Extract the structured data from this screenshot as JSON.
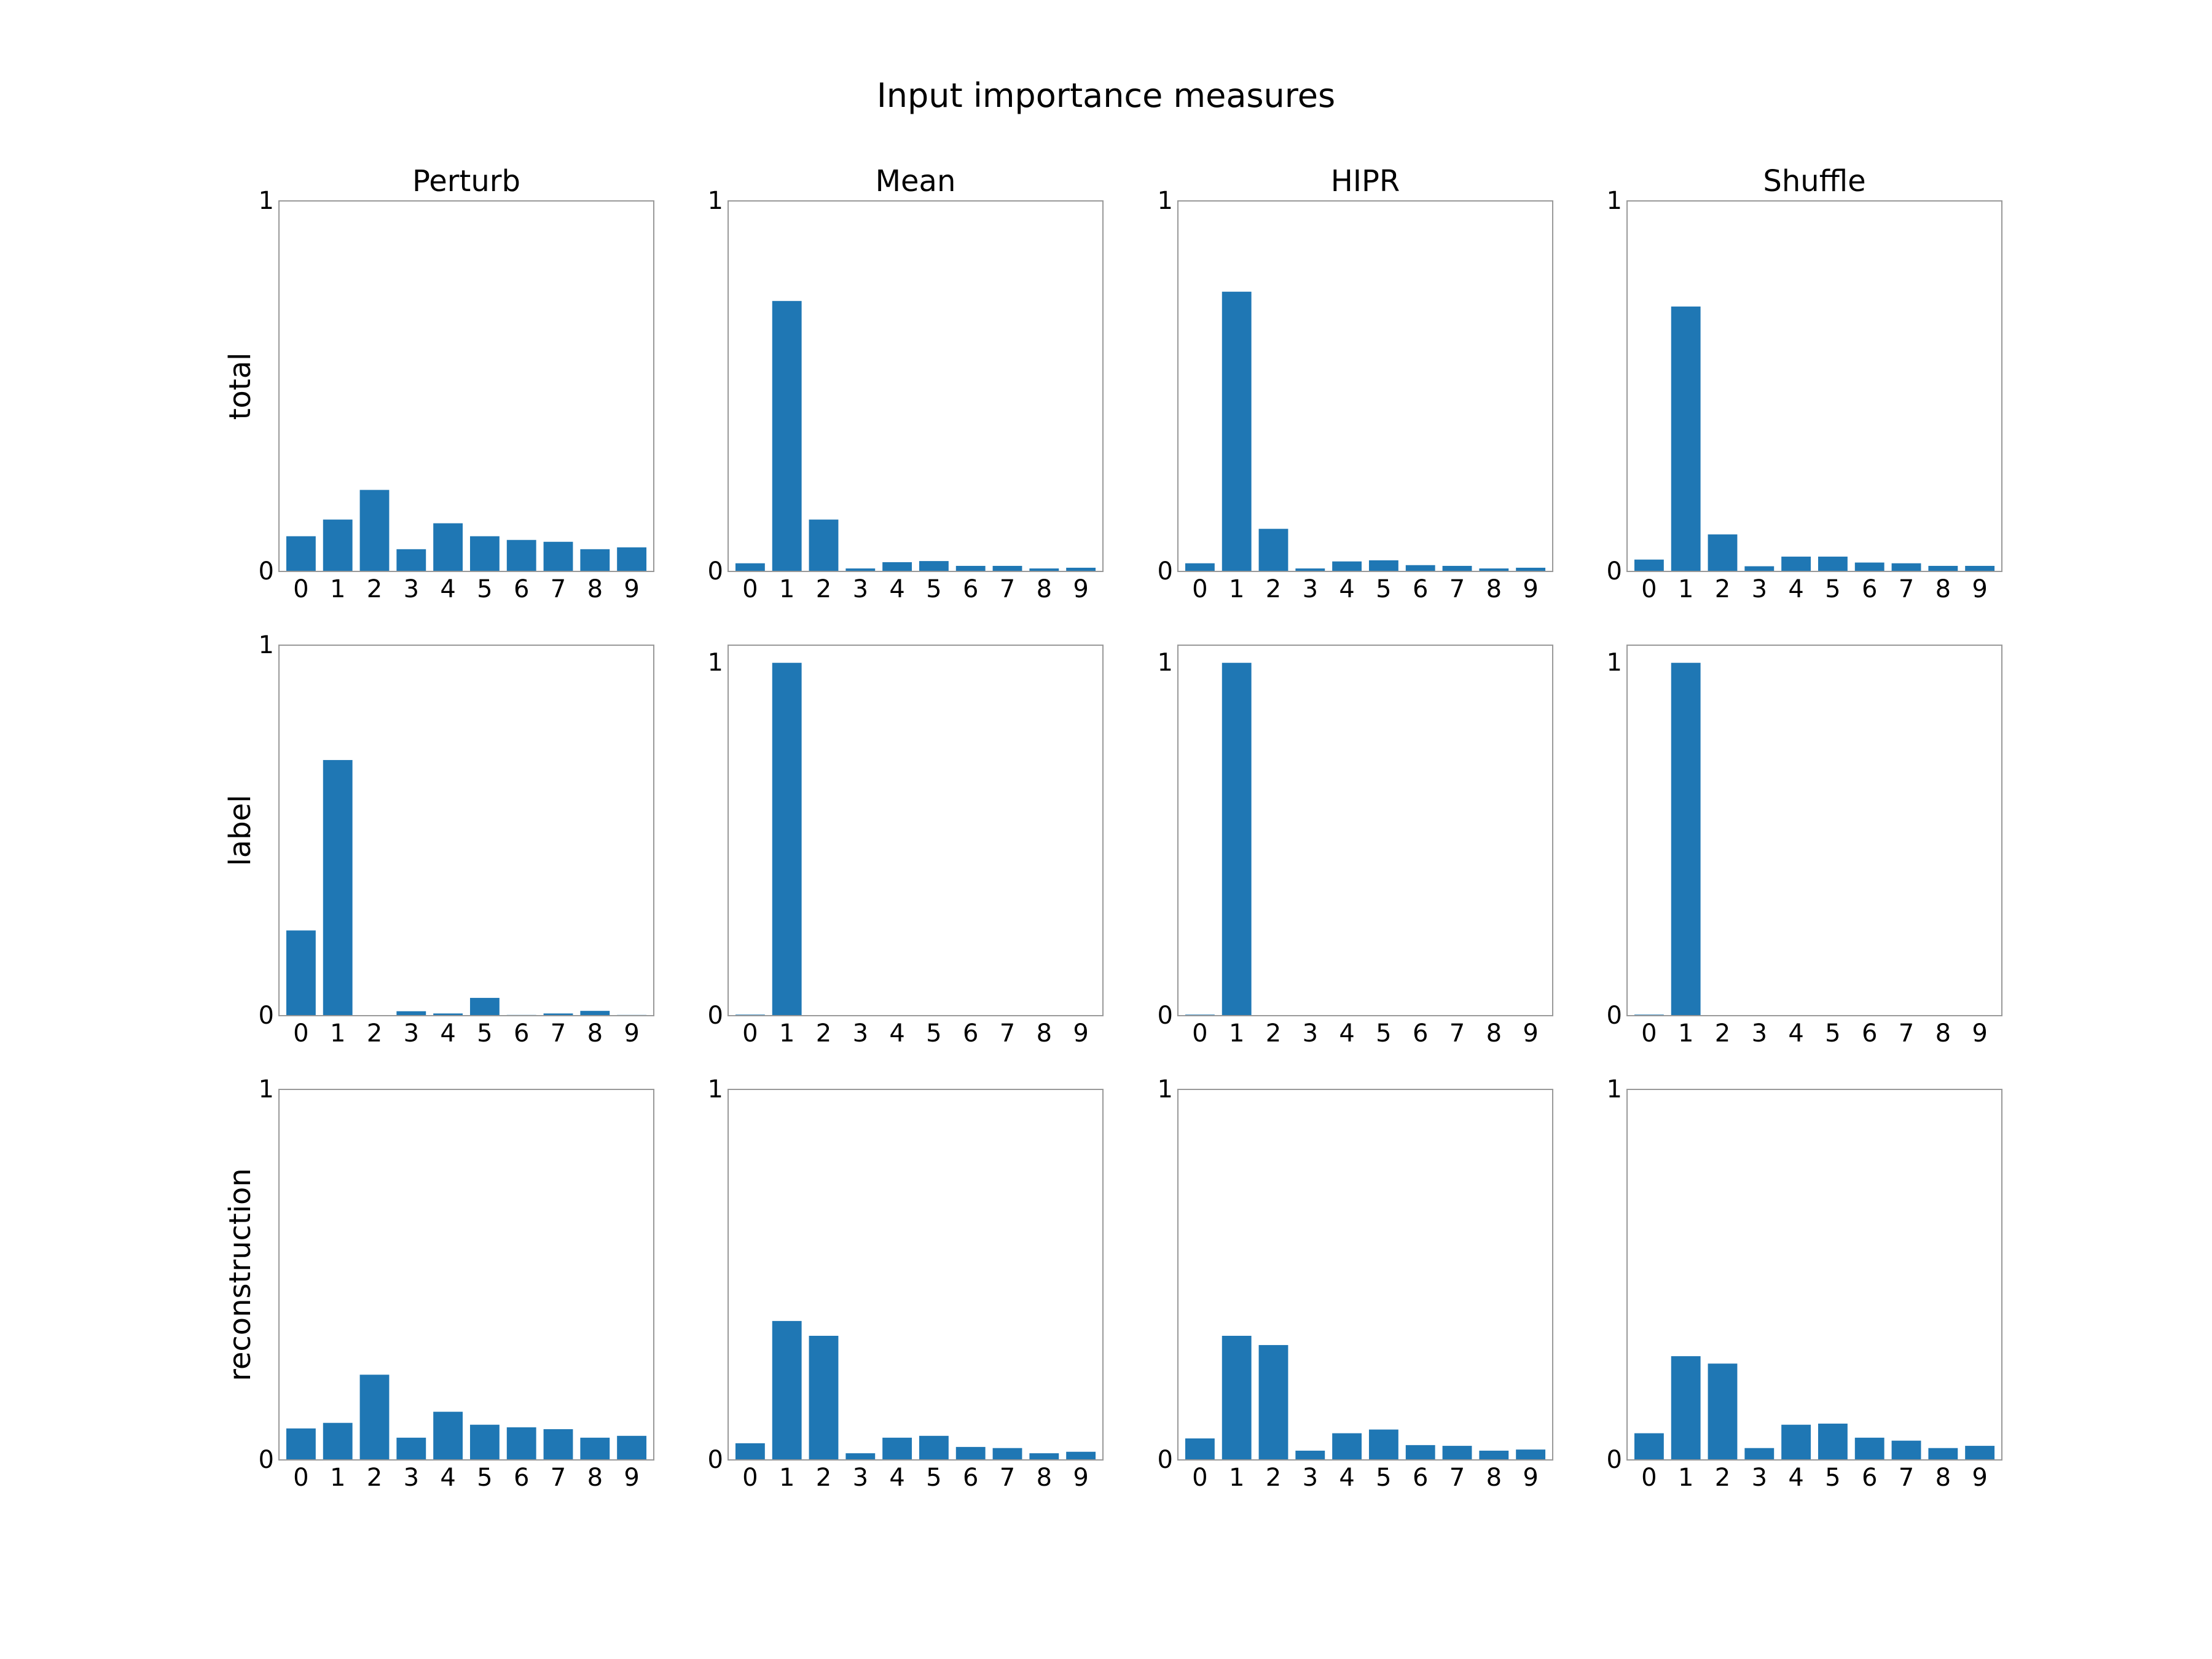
{
  "figure": {
    "title": "Input importance measures",
    "bar_color": "#1f77b4",
    "frame_color": "#999999"
  },
  "chart_data": {
    "type": "bar",
    "layout": "3x4 grid",
    "columns": [
      "Perturb",
      "Mean",
      "HIPR",
      "Shuffle"
    ],
    "rows": [
      "total",
      "label",
      "reconstruction"
    ],
    "categories": [
      "0",
      "1",
      "2",
      "3",
      "4",
      "5",
      "6",
      "7",
      "8",
      "9"
    ],
    "panels": [
      {
        "row": "total",
        "column": "Perturb",
        "ylim": [
          0,
          1
        ],
        "yticks": [
          "0",
          "1"
        ],
        "values": [
          0.095,
          0.14,
          0.22,
          0.06,
          0.13,
          0.095,
          0.085,
          0.08,
          0.06,
          0.065
        ]
      },
      {
        "row": "total",
        "column": "Mean",
        "ylim": [
          0,
          1
        ],
        "yticks": [
          "0",
          "1"
        ],
        "values": [
          0.022,
          0.73,
          0.14,
          0.008,
          0.025,
          0.028,
          0.015,
          0.015,
          0.008,
          0.01
        ]
      },
      {
        "row": "total",
        "column": "HIPR",
        "ylim": [
          0,
          1
        ],
        "yticks": [
          "0",
          "1"
        ],
        "values": [
          0.022,
          0.755,
          0.115,
          0.008,
          0.027,
          0.03,
          0.017,
          0.015,
          0.008,
          0.01
        ]
      },
      {
        "row": "total",
        "column": "Shuffle",
        "ylim": [
          0,
          1
        ],
        "yticks": [
          "0",
          "1"
        ],
        "values": [
          0.032,
          0.715,
          0.1,
          0.014,
          0.04,
          0.04,
          0.024,
          0.022,
          0.015,
          0.015
        ]
      },
      {
        "row": "label",
        "column": "Perturb",
        "ylim": [
          0,
          1
        ],
        "yticks": [
          "0",
          "1"
        ],
        "values": [
          0.23,
          0.69,
          0.0,
          0.012,
          0.006,
          0.048,
          0.002,
          0.006,
          0.013,
          0.002
        ]
      },
      {
        "row": "label",
        "column": "Mean",
        "ylim": [
          0,
          1.05
        ],
        "yticks": [
          "0",
          "1"
        ],
        "values": [
          0.003,
          1.0,
          0,
          0,
          0,
          0,
          0,
          0,
          0,
          0
        ]
      },
      {
        "row": "label",
        "column": "HIPR",
        "ylim": [
          0,
          1.05
        ],
        "yticks": [
          "0",
          "1"
        ],
        "values": [
          0.003,
          1.0,
          0,
          0,
          0,
          0,
          0,
          0,
          0,
          0
        ]
      },
      {
        "row": "label",
        "column": "Shuffle",
        "ylim": [
          0,
          1.05
        ],
        "yticks": [
          "0",
          "1"
        ],
        "values": [
          0.003,
          1.0,
          0,
          0,
          0,
          0,
          0,
          0,
          0,
          0
        ]
      },
      {
        "row": "reconstruction",
        "column": "Perturb",
        "ylim": [
          0,
          1
        ],
        "yticks": [
          "0",
          "1"
        ],
        "values": [
          0.085,
          0.1,
          0.23,
          0.06,
          0.13,
          0.095,
          0.088,
          0.083,
          0.06,
          0.065
        ]
      },
      {
        "row": "reconstruction",
        "column": "Mean",
        "ylim": [
          0,
          1
        ],
        "yticks": [
          "0",
          "1"
        ],
        "values": [
          0.045,
          0.375,
          0.335,
          0.018,
          0.06,
          0.065,
          0.035,
          0.032,
          0.018,
          0.022
        ]
      },
      {
        "row": "reconstruction",
        "column": "HIPR",
        "ylim": [
          0,
          1
        ],
        "yticks": [
          "0",
          "1"
        ],
        "values": [
          0.058,
          0.335,
          0.31,
          0.025,
          0.072,
          0.082,
          0.04,
          0.038,
          0.025,
          0.028
        ]
      },
      {
        "row": "reconstruction",
        "column": "Shuffle",
        "ylim": [
          0,
          1
        ],
        "yticks": [
          "0",
          "1"
        ],
        "values": [
          0.072,
          0.28,
          0.26,
          0.032,
          0.095,
          0.098,
          0.06,
          0.052,
          0.032,
          0.038
        ]
      }
    ]
  }
}
